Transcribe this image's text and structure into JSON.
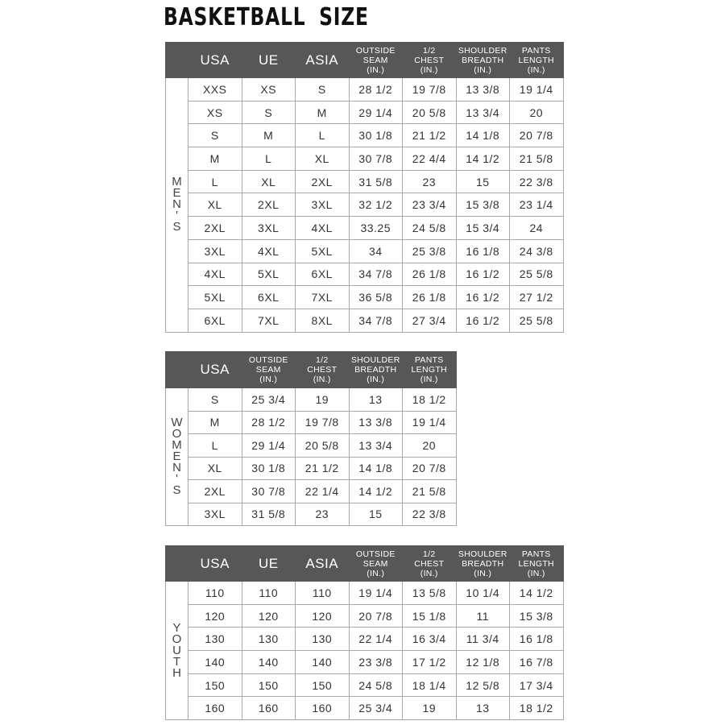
{
  "title": "BASKETBALL SIZE",
  "colors": {
    "header_bg": "#575757",
    "header_text": "#ffffff",
    "grid": "#a8a8a8",
    "text": "#333333"
  },
  "tables": [
    {
      "id": "mens",
      "side_label": "MEN'S",
      "headers": [
        "USA",
        "UE",
        "ASIA",
        "OUTSIDE\nSEAM\n(IN.)",
        "1/2\nCHEST\n(IN.)",
        "SHOULDER\nBREADTH\n(IN.)",
        "PANTS\nLENGTH\n(IN.)"
      ],
      "rows": [
        [
          "XXS",
          "XS",
          "S",
          "28 1/2",
          "19 7/8",
          "13 3/8",
          "19 1/4"
        ],
        [
          "XS",
          "S",
          "M",
          "29 1/4",
          "20 5/8",
          "13 3/4",
          "20"
        ],
        [
          "S",
          "M",
          "L",
          "30 1/8",
          "21 1/2",
          "14 1/8",
          "20 7/8"
        ],
        [
          "M",
          "L",
          "XL",
          "30 7/8",
          "22 4/4",
          "14 1/2",
          "21 5/8"
        ],
        [
          "L",
          "XL",
          "2XL",
          "31 5/8",
          "23",
          "15",
          "22 3/8"
        ],
        [
          "XL",
          "2XL",
          "3XL",
          "32 1/2",
          "23 3/4",
          "15 3/8",
          "23 1/4"
        ],
        [
          "2XL",
          "3XL",
          "4XL",
          "33.25",
          "24 5/8",
          "15 3/4",
          "24"
        ],
        [
          "3XL",
          "4XL",
          "5XL",
          "34",
          "25 3/8",
          "16 1/8",
          "24 3/8"
        ],
        [
          "4XL",
          "5XL",
          "6XL",
          "34 7/8",
          "26 1/8",
          "16 1/2",
          "25 5/8"
        ],
        [
          "5XL",
          "6XL",
          "7XL",
          "36 5/8",
          "26 1/8",
          "16 1/2",
          "27 1/2"
        ],
        [
          "6XL",
          "7XL",
          "8XL",
          "34 7/8",
          "27 3/4",
          "16 1/2",
          "25 5/8"
        ]
      ]
    },
    {
      "id": "womens",
      "side_label": "WOMEN'S",
      "headers": [
        "USA",
        "OUTSIDE\nSEAM\n(IN.)",
        "1/2\nCHEST\n(IN.)",
        "SHOULDER\nBREADTH\n(IN.)",
        "PANTS\nLENGTH\n(IN.)"
      ],
      "rows": [
        [
          "S",
          "25 3/4",
          "19",
          "13",
          "18 1/2"
        ],
        [
          "M",
          "28 1/2",
          "19 7/8",
          "13 3/8",
          "19 1/4"
        ],
        [
          "L",
          "29 1/4",
          "20 5/8",
          "13 3/4",
          "20"
        ],
        [
          "XL",
          "30 1/8",
          "21 1/2",
          "14 1/8",
          "20 7/8"
        ],
        [
          "2XL",
          "30 7/8",
          "22 1/4",
          "14 1/2",
          "21 5/8"
        ],
        [
          "3XL",
          "31 5/8",
          "23",
          "15",
          "22 3/8"
        ]
      ]
    },
    {
      "id": "youth",
      "side_label": "YOUTH",
      "headers": [
        "USA",
        "UE",
        "ASIA",
        "OUTSIDE\nSEAM\n(IN.)",
        "1/2\nCHEST\n(IN.)",
        "SHOULDER\nBREADTH\n(IN.)",
        "PANTS\nLENGTH\n(IN.)"
      ],
      "rows": [
        [
          "110",
          "110",
          "110",
          "19 1/4",
          "13 5/8",
          "10 1/4",
          "14 1/2"
        ],
        [
          "120",
          "120",
          "120",
          "20 7/8",
          "15 1/8",
          "11",
          "15 3/8"
        ],
        [
          "130",
          "130",
          "130",
          "22 1/4",
          "16 3/4",
          "11 3/4",
          "16 1/8"
        ],
        [
          "140",
          "140",
          "140",
          "23 3/8",
          "17 1/2",
          "12 1/8",
          "16 7/8"
        ],
        [
          "150",
          "150",
          "150",
          "24 5/8",
          "18 1/4",
          "12 5/8",
          "17 3/4"
        ],
        [
          "160",
          "160",
          "160",
          "25 3/4",
          "19",
          "13",
          "18 1/2"
        ]
      ]
    }
  ]
}
